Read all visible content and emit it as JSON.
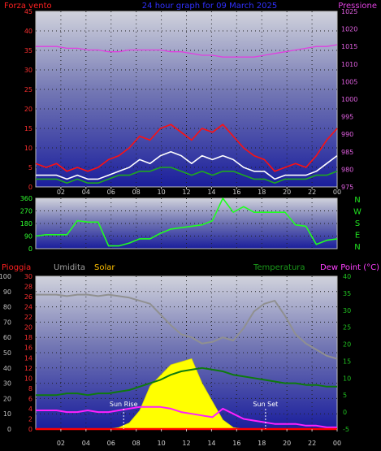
{
  "chart_data": [
    {
      "id": "wind",
      "type": "line",
      "title": "24 hour graph for 09 March 2025",
      "left_label": "Forza vento",
      "right_label": "Pressione",
      "left_ticks": [
        "0",
        "5",
        "10",
        "15",
        "20",
        "25",
        "30",
        "35",
        "40",
        "45"
      ],
      "right_ticks": [
        "975",
        "980",
        "985",
        "990",
        "995",
        "1000",
        "1005",
        "1010",
        "1015",
        "1020",
        "1025"
      ],
      "ylim_left": [
        0,
        45
      ],
      "ylim_right": [
        975,
        1025
      ],
      "x_ticks": [
        "02",
        "04",
        "06",
        "08",
        "10",
        "12",
        "14",
        "16",
        "18",
        "20",
        "22",
        "00"
      ],
      "grid": true,
      "series": [
        {
          "key": "pressure",
          "axis": "right",
          "color": "#e040e0",
          "values": [
            1015,
            1015,
            1015,
            1014.5,
            1014.5,
            1014,
            1014,
            1013.5,
            1013.5,
            1014,
            1014,
            1014,
            1014,
            1013.5,
            1013.5,
            1013,
            1012.5,
            1012.5,
            1012,
            1012,
            1012,
            1012,
            1012.5,
            1013,
            1013.5,
            1014,
            1014.5,
            1015,
            1015,
            1015.5
          ]
        },
        {
          "key": "gust",
          "axis": "left",
          "color": "#ff1010",
          "values": [
            6,
            5,
            6,
            4,
            5,
            4,
            5,
            7,
            8,
            10,
            13,
            12,
            15,
            16,
            14,
            12,
            15,
            14,
            16,
            13,
            10,
            8,
            7,
            4,
            5,
            6,
            5,
            8,
            12,
            15
          ]
        },
        {
          "key": "average",
          "axis": "left",
          "color": "#ffffff",
          "values": [
            3,
            3,
            3,
            2,
            3,
            2,
            2,
            3,
            4,
            5,
            7,
            6,
            8,
            9,
            8,
            6,
            8,
            7,
            8,
            7,
            5,
            4,
            4,
            2,
            3,
            3,
            3,
            4,
            6,
            8
          ]
        },
        {
          "key": "speed",
          "axis": "left",
          "color": "#1fa81f",
          "values": [
            2,
            2,
            2,
            1,
            2,
            1,
            1,
            2,
            3,
            3,
            4,
            4,
            5,
            5,
            4,
            3,
            4,
            3,
            4,
            4,
            3,
            2,
            2,
            1,
            2,
            2,
            2,
            3,
            3,
            4
          ]
        }
      ]
    },
    {
      "id": "direction",
      "type": "line",
      "left_ticks": [
        "0",
        "90",
        "180",
        "270",
        "360"
      ],
      "right_letters": [
        "N",
        "W",
        "S",
        "E",
        "N"
      ],
      "ylim": [
        0,
        360
      ],
      "grid": true,
      "series": [
        {
          "key": "bearing",
          "color": "#20ff20",
          "values": [
            90,
            100,
            100,
            100,
            200,
            190,
            190,
            20,
            20,
            40,
            70,
            70,
            110,
            140,
            150,
            160,
            170,
            200,
            360,
            260,
            300,
            260,
            260,
            260,
            260,
            170,
            160,
            30,
            60,
            70
          ]
        }
      ]
    },
    {
      "id": "weather",
      "type": "line",
      "left_labels": [
        "Pioggia",
        "Umidita",
        "Solar"
      ],
      "right_labels": [
        "Temperatura",
        "Dew Point (°C)"
      ],
      "outer_ticks": [
        "0",
        "10",
        "20",
        "30",
        "40",
        "50",
        "60",
        "70",
        "80",
        "90",
        "100"
      ],
      "rain_ticks": [
        "0",
        "2",
        "4",
        "6",
        "8",
        "10",
        "12",
        "14",
        "16",
        "18",
        "20",
        "22",
        "24",
        "26",
        "28",
        "30"
      ],
      "temp_ticks": [
        "-5",
        "0",
        "5",
        "10",
        "15",
        "20",
        "25",
        "30",
        "35",
        "40"
      ],
      "ylim_outer": [
        0,
        100
      ],
      "ylim_temp": [
        -5,
        40
      ],
      "x_ticks": [
        "02",
        "04",
        "06",
        "08",
        "10",
        "12",
        "14",
        "16",
        "18",
        "20",
        "22",
        "00"
      ],
      "annotations": [
        {
          "text": "Sun Rise",
          "hour": 7.0
        },
        {
          "text": "Sun Set",
          "hour": 18.3
        }
      ],
      "grid": true,
      "series": [
        {
          "key": "solar",
          "axis": "outer",
          "color": "#ffff00",
          "values": [
            0,
            0,
            0,
            0,
            0,
            0,
            0,
            0,
            1,
            4,
            12,
            28,
            35,
            42,
            44,
            46,
            30,
            18,
            6,
            1,
            0,
            0,
            0,
            0,
            0,
            0,
            0,
            0,
            0,
            0
          ]
        },
        {
          "key": "humidity",
          "axis": "outer",
          "color": "#909090",
          "values": [
            88,
            88,
            88,
            87,
            88,
            88,
            87,
            88,
            87,
            86,
            84,
            82,
            75,
            68,
            62,
            60,
            56,
            57,
            60,
            58,
            66,
            77,
            82,
            84,
            74,
            62,
            56,
            52,
            48,
            46
          ]
        },
        {
          "key": "temperature",
          "axis": "temp",
          "color": "#0e7a0e",
          "values": [
            5,
            5,
            5,
            5.5,
            5.5,
            5,
            5.5,
            5.5,
            6,
            6.5,
            7.5,
            8.5,
            9.5,
            11,
            12,
            12.5,
            13,
            12.5,
            12,
            11,
            10.5,
            10,
            9.5,
            9,
            8.5,
            8.5,
            8,
            8,
            7.5,
            7.5
          ]
        },
        {
          "key": "dewpoint",
          "axis": "temp",
          "color": "#ff20ff",
          "values": [
            0.5,
            0.5,
            0.5,
            0,
            0,
            0.5,
            0,
            0,
            0.5,
            1,
            1.5,
            1.5,
            1.5,
            1,
            0,
            -0.5,
            -1,
            -1.5,
            1,
            -0.5,
            -2,
            -2.5,
            -3,
            -3.5,
            -3.5,
            -3.5,
            -4,
            -4,
            -4.5,
            -4.5
          ]
        },
        {
          "key": "rain",
          "axis": "outer",
          "color": "#ff0000",
          "values": [
            0,
            0,
            0,
            0,
            0,
            0,
            0,
            0,
            0,
            0,
            0,
            0,
            0,
            0,
            0,
            0,
            0,
            0,
            0,
            0,
            0,
            0,
            0,
            0,
            0,
            0,
            0,
            0,
            0,
            0
          ]
        }
      ]
    }
  ]
}
